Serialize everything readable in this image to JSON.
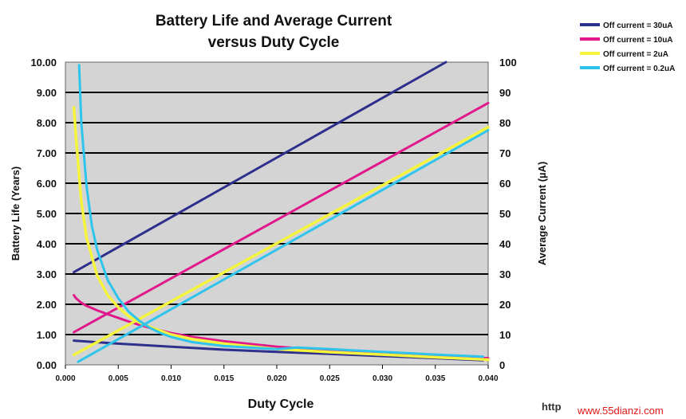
{
  "chart_data": {
    "type": "line",
    "title_lines": [
      "Battery Life and Average Current",
      "versus Duty Cycle"
    ],
    "xlabel": "Duty Cycle",
    "ylabel_left": "Battery Life (Years)",
    "ylabel_right": "Average Current (µA)",
    "xlim": [
      0,
      0.04
    ],
    "ylim_left": [
      0,
      10
    ],
    "ylim_right": [
      0,
      100
    ],
    "x_ticks": [
      "0.000",
      "0.005",
      "0.010",
      "0.015",
      "0.020",
      "0.025",
      "0.030",
      "0.035",
      "0.040"
    ],
    "y_left_ticks": [
      "0.00",
      "1.00",
      "2.00",
      "3.00",
      "4.00",
      "5.00",
      "6.00",
      "7.00",
      "8.00",
      "9.00",
      "10.00"
    ],
    "y_right_ticks": [
      "0",
      "10",
      "20",
      "30",
      "40",
      "50",
      "60",
      "70",
      "80",
      "90",
      "100"
    ],
    "grid": "horizontal",
    "legend_position": "top-right",
    "series": [
      {
        "name": "Off current = 30uA",
        "color": "#2e2e8c",
        "current": {
          "x": [
            0.0008,
            0.036
          ],
          "y": [
            30.6,
            100
          ]
        },
        "battery_life": {
          "x": [
            0.0008,
            0.005,
            0.01,
            0.015,
            0.02,
            0.025,
            0.03,
            0.035,
            0.0395
          ],
          "y": [
            0.8,
            0.7,
            0.6,
            0.5,
            0.43,
            0.36,
            0.29,
            0.22,
            0.15
          ]
        }
      },
      {
        "name": "Off current = 10uA",
        "color": "#e0188c",
        "current": {
          "x": [
            0.0008,
            0.04
          ],
          "y": [
            10.8,
            86.5
          ]
        },
        "battery_life": {
          "x": [
            0.0008,
            0.001,
            0.0015,
            0.002,
            0.003,
            0.004,
            0.005,
            0.006,
            0.007,
            0.008,
            0.01,
            0.012,
            0.015,
            0.02,
            0.025,
            0.03,
            0.035,
            0.04
          ],
          "y": [
            2.3,
            2.2,
            2.05,
            1.95,
            1.8,
            1.67,
            1.55,
            1.43,
            1.32,
            1.22,
            1.05,
            0.92,
            0.78,
            0.6,
            0.48,
            0.38,
            0.3,
            0.22
          ]
        }
      },
      {
        "name": "Off current = 2uA",
        "color": "#f4f43c",
        "current": {
          "x": [
            0.0008,
            0.04
          ],
          "y": [
            3.3,
            78.5
          ]
        },
        "battery_life": {
          "x": [
            0.0008,
            0.001,
            0.0015,
            0.002,
            0.003,
            0.004,
            0.005,
            0.006,
            0.007,
            0.008,
            0.01,
            0.012,
            0.015,
            0.02,
            0.025,
            0.03,
            0.035,
            0.04
          ],
          "y": [
            8.5,
            7.5,
            5.4,
            4.2,
            2.95,
            2.3,
            1.9,
            1.6,
            1.4,
            1.25,
            1.0,
            0.85,
            0.7,
            0.52,
            0.42,
            0.34,
            0.25,
            0.17
          ]
        }
      },
      {
        "name": "Off current = 0.2uA",
        "color": "#2ec4ec",
        "current": {
          "x": [
            0.0012,
            0.04
          ],
          "y": [
            1.0,
            77.5
          ]
        },
        "battery_life": {
          "x": [
            0.0013,
            0.0015,
            0.002,
            0.0025,
            0.003,
            0.004,
            0.005,
            0.006,
            0.007,
            0.008,
            0.009,
            0.01,
            0.012,
            0.015,
            0.02,
            0.022,
            0.025,
            0.03,
            0.035,
            0.0395
          ],
          "y": [
            9.9,
            8.0,
            5.9,
            4.6,
            3.8,
            2.8,
            2.2,
            1.75,
            1.45,
            1.22,
            1.05,
            0.92,
            0.75,
            0.62,
            0.52,
            0.57,
            0.52,
            0.43,
            0.34,
            0.27
          ]
        }
      }
    ]
  },
  "watermark": {
    "left_text": "http",
    "right_text": "www.55dianzi.com",
    "right_color": "#e01818"
  }
}
